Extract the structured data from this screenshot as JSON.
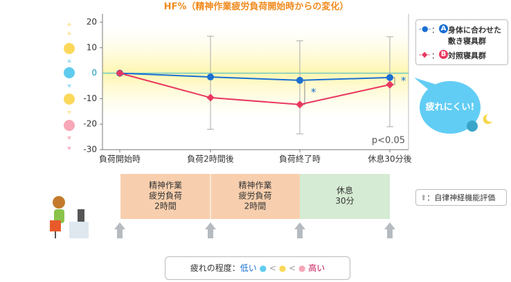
{
  "title": "HF%（精神作業疲労負荷開始時からの変化）",
  "chart_data": {
    "type": "line",
    "categories": [
      "負荷開始時",
      "負荷2時間後",
      "負荷終了時",
      "休息30分後"
    ],
    "series": [
      {
        "name": "身体に合わせた敷き寝具群",
        "badge": "A",
        "color": "#1a6fd1",
        "marker": "circle",
        "values": [
          0,
          -1.5,
          -2.8,
          -1.7
        ]
      },
      {
        "name": "対照寝具群",
        "badge": "B",
        "color": "#e8385f",
        "marker": "diamond",
        "values": [
          0,
          -9.6,
          -12.3,
          -4.5
        ]
      }
    ],
    "whiskers": {
      "low": [
        null,
        -22,
        -23.8,
        -21
      ],
      "high": [
        null,
        14.5,
        12.7,
        14.3
      ]
    },
    "ylim": [
      -30,
      20
    ],
    "yticks": [
      20,
      10,
      0,
      -10,
      -20,
      -30
    ],
    "legend_separator": "：",
    "significance": [
      "*",
      "*"
    ],
    "p_value": "p<0.05",
    "callout": "疲れにくい!"
  },
  "timeline": {
    "phases": [
      [
        "精神作業",
        "疲労負荷",
        "2時間"
      ],
      [
        "精神作業",
        "疲労負荷",
        "2時間"
      ],
      [
        "休息",
        "30分"
      ]
    ],
    "arrow_legend": "：自律神経機能評価"
  },
  "fatigue_scale": {
    "label": "疲れの程度：",
    "low": "低い",
    "separator": "<",
    "high": "高い"
  }
}
